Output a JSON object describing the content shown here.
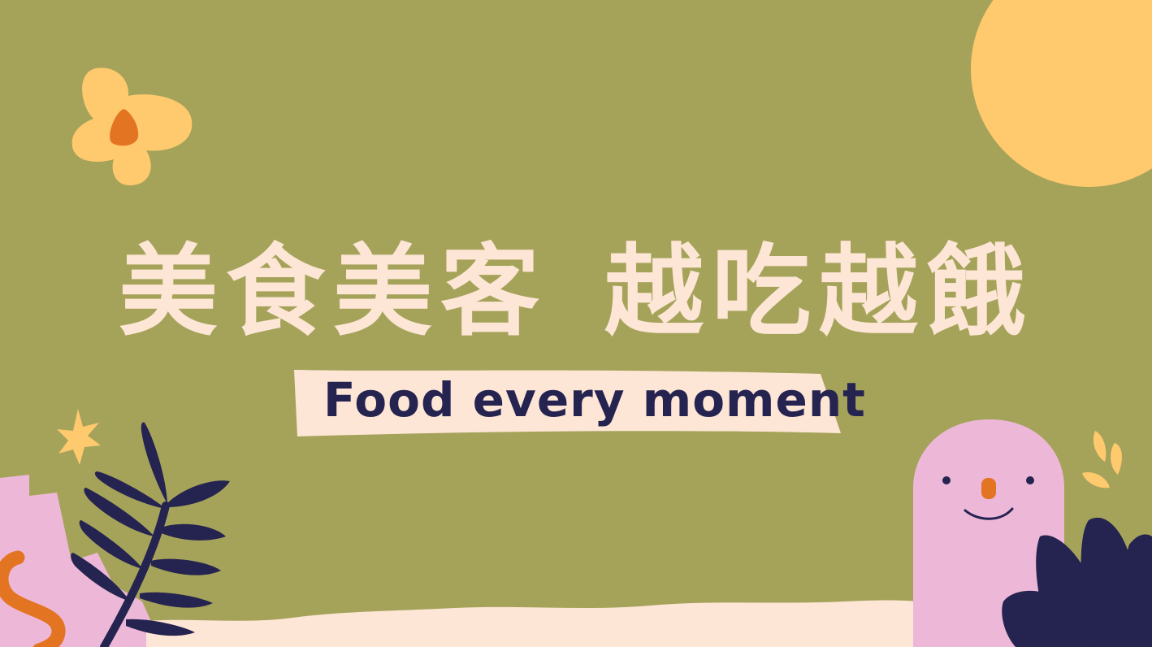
{
  "colors": {
    "background": "#A5A35A",
    "title": "#FDE6D6",
    "banner": "#FDE6D6",
    "subtitle": "#252350",
    "sun": "#FFC96E",
    "flower_petal": "#FFC96E",
    "flower_center": "#E37422",
    "leaf_dark": "#252350",
    "pink": "#EDB8D8",
    "orange": "#E37422",
    "cream": "#FDE6D6"
  },
  "title": {
    "part1": "美食美客",
    "part2": "越吃越餓"
  },
  "subtitle": "Food every moment",
  "icons": [
    "sun-shape",
    "flower-icon",
    "star-icon",
    "fern-leaf-icon",
    "pink-ghost-character",
    "dark-leaves-icon",
    "yellow-sprout-icon",
    "orange-squiggle-icon"
  ]
}
